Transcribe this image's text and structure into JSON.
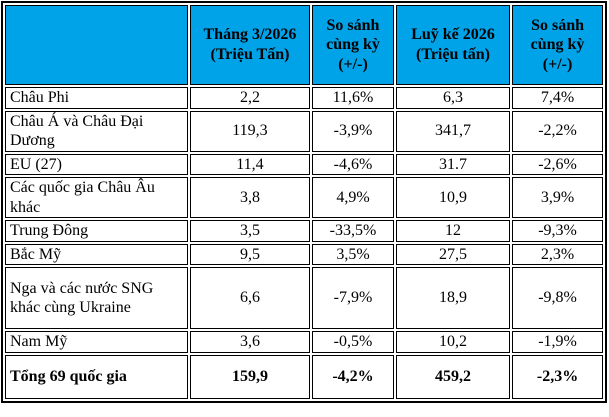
{
  "colors": {
    "header_bg": "#00A2E8",
    "border": "#000000",
    "text": "#000000"
  },
  "table": {
    "columns": [
      "",
      "Tháng 3/2026 (Triệu Tấn)",
      "So sánh cùng kỳ (+/-)",
      "Luỹ kế 2026 (Triệu tấn)",
      "So sánh cùng kỳ (+/-)"
    ],
    "rows": [
      {
        "label": "Châu Phi",
        "values": [
          "2,2",
          "11,6%",
          "6,3",
          "7,4%"
        ],
        "bold": false
      },
      {
        "label": "Châu Á và Châu Đại Dương",
        "values": [
          "119,3",
          "-3,9%",
          "341,7",
          "-2,2%"
        ],
        "bold": false
      },
      {
        "label": "EU (27)",
        "values": [
          "11,4",
          "-4,6%",
          "31.7",
          "-2,6%"
        ],
        "bold": false
      },
      {
        "label": "Các quốc gia Châu Âu khác",
        "values": [
          "3,8",
          "4,9%",
          "10,9",
          "3,9%"
        ],
        "bold": false
      },
      {
        "label": "Trung Đông",
        "values": [
          "3,5",
          "-33,5%",
          "12",
          "-9,3%"
        ],
        "bold": false
      },
      {
        "label": "Bắc Mỹ",
        "values": [
          "9,5",
          "3,5%",
          "27,5",
          "2,3%"
        ],
        "bold": false
      },
      {
        "label": "Nga và các nước SNG khác cùng Ukraine",
        "values": [
          "6,6",
          "-7,9%",
          "18,9",
          "-9,8%"
        ],
        "bold": false
      },
      {
        "label": "Nam Mỹ",
        "values": [
          "3,6",
          "-0,5%",
          "10,2",
          "-1,9%"
        ],
        "bold": false
      },
      {
        "label": "Tổng 69 quốc gia",
        "values": [
          "159,9",
          "-4,2%",
          "459,2",
          "-2,3%"
        ],
        "bold": true
      }
    ]
  }
}
